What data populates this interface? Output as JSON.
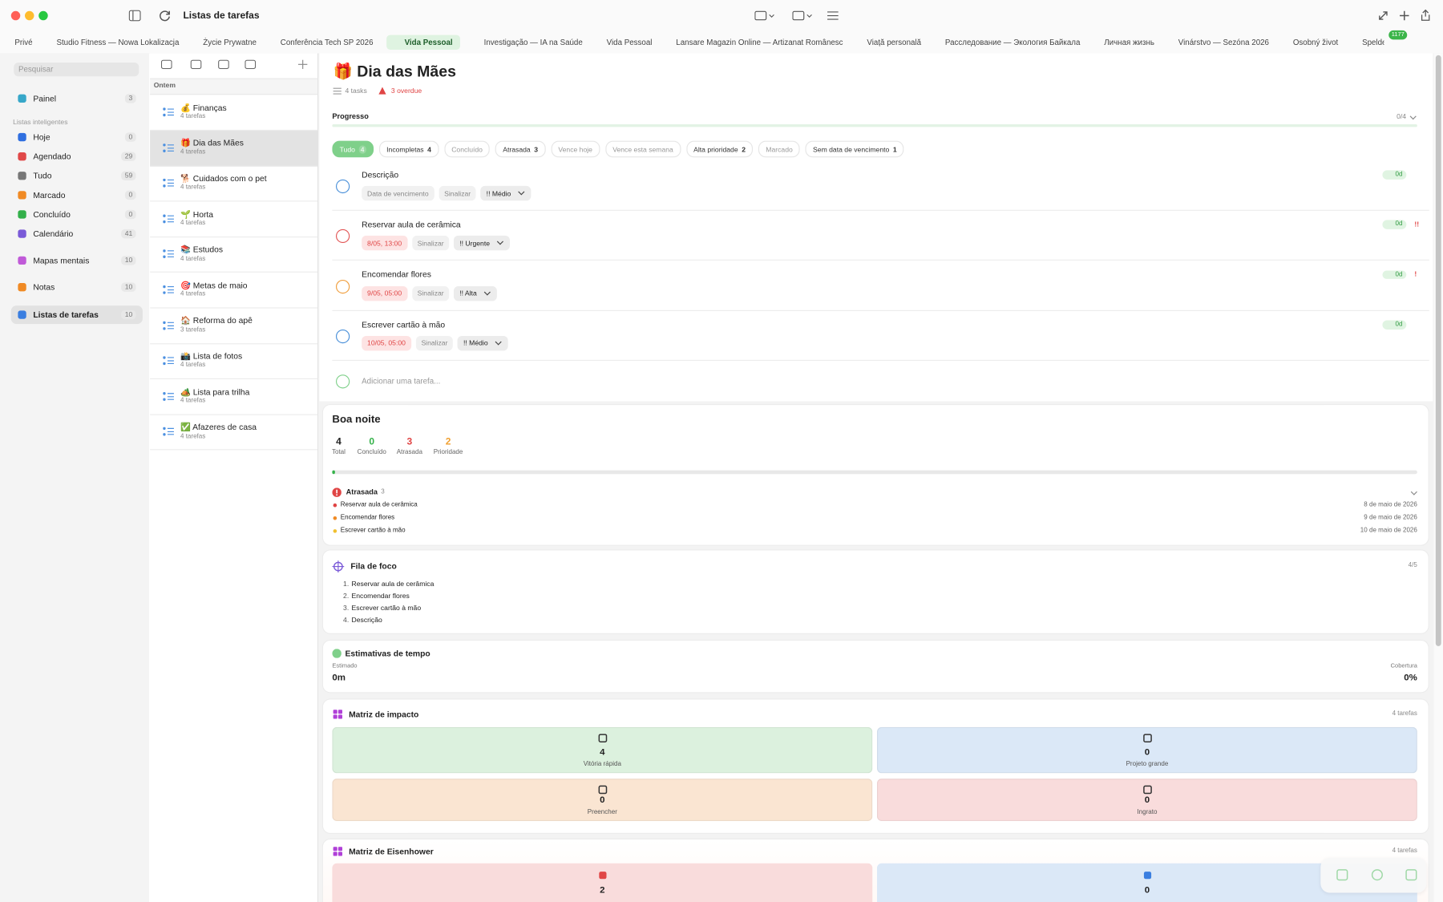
{
  "window": {
    "title": "Listas de tarefas"
  },
  "tabs": {
    "active": 4,
    "badge": "1177",
    "items": [
      "Privé",
      "Studio Fitness — Nowa Lokalizacja",
      "Życie Prywatne",
      "Conferência Tech SP 2026",
      "Vida Pessoal",
      "Investigação — IA na Saúde",
      "Vida Pessoal",
      "Lansare Magazin Online — Artizanat Românesc",
      "Viață personală",
      "Расследование — Экология Байкала",
      "Личная жизнь",
      "Vinárstvo — Sezóna 2026",
      "Osobný život",
      "Speldesign — A"
    ]
  },
  "sidebar": {
    "search": "Pesquisar",
    "section": "Listas inteligentes",
    "top": [
      {
        "label": "Painel",
        "count": 3,
        "color": "#37a7c9"
      }
    ],
    "smart": [
      {
        "label": "Hoje",
        "count": 0,
        "color": "#2f6fe0"
      },
      {
        "label": "Agendado",
        "count": 29,
        "color": "#e04848"
      },
      {
        "label": "Tudo",
        "count": 59,
        "color": "#777777"
      },
      {
        "label": "Marcado",
        "count": 0,
        "color": "#f08a24"
      },
      {
        "label": "Concluído",
        "count": 0,
        "color": "#33b04a"
      },
      {
        "label": "Calendário",
        "count": 41,
        "color": "#7a5ad8"
      }
    ],
    "other": [
      {
        "label": "Mapas mentais",
        "count": 10,
        "color": "#c05ad8"
      },
      {
        "label": "Notas",
        "count": 10,
        "color": "#f08a24"
      },
      {
        "label": "Listas de tarefas",
        "count": 10,
        "color": "#3a7ee0"
      }
    ],
    "active_other": 2
  },
  "lists": {
    "group": "Ontem",
    "active": 1,
    "items": [
      {
        "name": "💰 Finanças",
        "sub": "4 tarefas"
      },
      {
        "name": "🎁 Dia das Mães",
        "sub": "4 tarefas"
      },
      {
        "name": "🐕 Cuidados com o pet",
        "sub": "4 tarefas"
      },
      {
        "name": "🌱 Horta",
        "sub": "4 tarefas"
      },
      {
        "name": "📚 Estudos",
        "sub": "4 tarefas"
      },
      {
        "name": "🎯 Metas de maio",
        "sub": "4 tarefas"
      },
      {
        "name": "🏠 Reforma do apê",
        "sub": "3 tarefas"
      },
      {
        "name": "📸 Lista de fotos",
        "sub": "4 tarefas"
      },
      {
        "name": "🏕️ Lista para trilha",
        "sub": "4 tarefas"
      },
      {
        "name": "✅ Afazeres de casa",
        "sub": "4 tarefas"
      }
    ]
  },
  "main": {
    "title": "🎁 Dia das Mães",
    "tasks_count": "4 tasks",
    "overdue": "3 overdue",
    "progress_label": "Progresso",
    "progress": "0/4",
    "filters": [
      {
        "label": "Tudo",
        "count": 4
      },
      {
        "label": "Incompletas",
        "count": 4
      },
      {
        "label": "Concluído"
      },
      {
        "label": "Atrasada",
        "count": 3
      },
      {
        "label": "Vence hoje"
      },
      {
        "label": "Vence esta semana"
      },
      {
        "label": "Alta prioridade",
        "count": 2
      },
      {
        "label": "Marcado"
      },
      {
        "label": "Sem data de vencimento",
        "count": 1
      }
    ],
    "active_filter": 0,
    "tasks": [
      {
        "title": "Descrição",
        "date": "Data de vencimento",
        "overdue": false,
        "flag": "Sinalizar",
        "priority": "!! Médio",
        "age": "0d",
        "ring": "#4a90d9"
      },
      {
        "title": "Reservar aula de cerâmica",
        "date": "8/05, 13:00",
        "overdue": true,
        "flag": "Sinalizar",
        "priority": "!! Urgente",
        "age": "0d",
        "marker": "!!",
        "ring": "#e25555"
      },
      {
        "title": "Encomendar flores",
        "date": "9/05, 05:00",
        "overdue": true,
        "flag": "Sinalizar",
        "priority": "!! Alta",
        "age": "0d",
        "marker": "!",
        "ring": "#f0a040"
      },
      {
        "title": "Escrever cartão à mão",
        "date": "10/05, 05:00",
        "overdue": true,
        "flag": "Sinalizar",
        "priority": "!! Médio",
        "age": "0d",
        "ring": "#4a90d9"
      }
    ],
    "add": "Adicionar uma tarefa..."
  },
  "summary": {
    "title": "Boa noite",
    "stats": [
      {
        "value": 4,
        "label": "Total",
        "color": "#222222"
      },
      {
        "value": 0,
        "label": "Concluído",
        "color": "#35b24a"
      },
      {
        "value": 3,
        "label": "Atrasada",
        "color": "#e04545"
      },
      {
        "value": 2,
        "label": "Prioridade",
        "color": "#f0a030"
      }
    ],
    "overdue": {
      "title": "Atrasada",
      "count": 3,
      "items": [
        {
          "name": "Reservar aula de cerâmica",
          "date": "8 de maio de 2026",
          "color": "#e04545"
        },
        {
          "name": "Encomendar flores",
          "date": "9 de maio de 2026",
          "color": "#f08a24"
        },
        {
          "name": "Escrever cartão à mão",
          "date": "10 de maio de 2026",
          "color": "#f0c030"
        }
      ]
    }
  },
  "focus": {
    "title": "Fila de foco",
    "count": "4/5",
    "items": [
      {
        "n": "1.",
        "text": "Reservar aula de cerâmica"
      },
      {
        "n": "2.",
        "text": "Encomendar flores"
      },
      {
        "n": "3.",
        "text": "Escrever cartão à mão"
      },
      {
        "n": "4.",
        "text": "Descrição"
      }
    ]
  },
  "estimates": {
    "title": "Estimativas de tempo",
    "estimated_label": "Estimado",
    "estimated": "0m",
    "coverage_label": "Cobertura",
    "coverage": "0%"
  },
  "impact": {
    "title": "Matriz de impacto",
    "count": "4 tarefas",
    "cells": [
      {
        "value": 4,
        "label": "Vitória rápida",
        "color": "#dcf1de"
      },
      {
        "value": 0,
        "label": "Projeto grande",
        "color": "#dbe8f7"
      },
      {
        "value": 0,
        "label": "Preencher",
        "color": "#fae5d2"
      },
      {
        "value": 0,
        "label": "Ingrato",
        "color": "#f9dcdc"
      }
    ]
  },
  "eisenhower": {
    "title": "Matriz de Eisenhower",
    "count": "4 tarefas",
    "cells": [
      {
        "value": 2,
        "color": "#f9dcdc"
      },
      {
        "value": 0,
        "color": "#dbe8f7"
      }
    ]
  }
}
